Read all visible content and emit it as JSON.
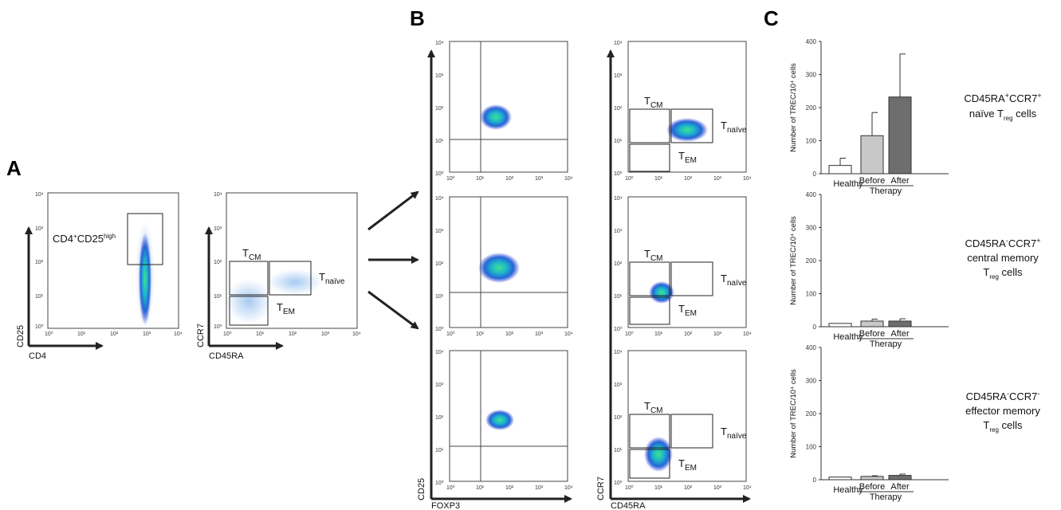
{
  "panel_letters": {
    "a": "A",
    "b": "B",
    "c": "C"
  },
  "flow_ticks": [
    "10⁰",
    "10¹",
    "10²",
    "10³",
    "10⁴"
  ],
  "axis_labels": {
    "cd25": "CD25",
    "cd4": "CD4",
    "ccr7": "CCR7",
    "cd45ra": "CD45RA",
    "foxp3": "FOXP3"
  },
  "gates": {
    "cd4cd25": {
      "base": "CD4",
      "sup1": "+",
      "mid": "CD25",
      "sup2": "high"
    },
    "tcm": {
      "base": "T",
      "sub": "CM"
    },
    "tem": {
      "base": "T",
      "sub": "EM"
    },
    "tnaive": {
      "base": "T",
      "sub": "naïve"
    }
  },
  "row_labels": [
    {
      "line1_a": "CD45RA",
      "line1_a_sup": "+",
      "line1_b": "CCR7",
      "line1_b_sup": "+",
      "line2": "naïve T",
      "line2_sub": "reg",
      "line2_end": " cells"
    },
    {
      "line1_a": "CD45RA",
      "line1_a_sup": "-",
      "line1_b": "CCR7",
      "line1_b_sup": "+",
      "line2": "central memory",
      "line3": "T",
      "line3_sub": "reg",
      "line3_end": " cells"
    },
    {
      "line1_a": "CD45RA",
      "line1_a_sup": "-",
      "line1_b": "CCR7",
      "line1_b_sup": "-",
      "line2": "effector memory",
      "line3": "T",
      "line3_sub": "reg",
      "line3_end": " cells"
    }
  ],
  "chart_data": [
    {
      "type": "bar",
      "categories": [
        "Healthy",
        "Before",
        "After"
      ],
      "group_label": "Therapy",
      "ylabel": "Number of TREC/10⁴ cells",
      "ylim": [
        0,
        400
      ],
      "yticks": [
        0,
        100,
        200,
        300,
        400
      ],
      "values": [
        25,
        115,
        232
      ],
      "errors": [
        22,
        70,
        130
      ],
      "colors": [
        "#ffffff",
        "#c8c8c8",
        "#6e6e6e"
      ]
    },
    {
      "type": "bar",
      "categories": [
        "Healthy",
        "Before",
        "After"
      ],
      "group_label": "Therapy",
      "ylabel": "Number of TREC/10⁴ cells",
      "ylim": [
        0,
        400
      ],
      "yticks": [
        0,
        100,
        200,
        300,
        400
      ],
      "values": [
        10,
        17,
        17
      ],
      "errors": [
        0,
        6,
        7
      ],
      "colors": [
        "#ffffff",
        "#c8c8c8",
        "#6e6e6e"
      ]
    },
    {
      "type": "bar",
      "categories": [
        "Healthy",
        "Before",
        "After"
      ],
      "group_label": "Therapy",
      "ylabel": "Number of TREC/10⁴ cells",
      "ylim": [
        0,
        400
      ],
      "yticks": [
        0,
        100,
        200,
        300,
        400
      ],
      "values": [
        8,
        10,
        13
      ],
      "errors": [
        0,
        2,
        4
      ],
      "colors": [
        "#ffffff",
        "#c8c8c8",
        "#6e6e6e"
      ]
    }
  ]
}
